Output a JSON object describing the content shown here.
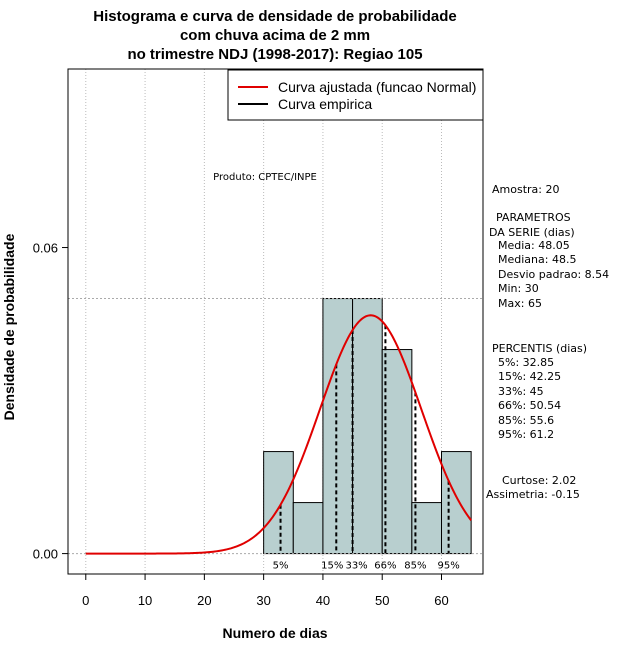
{
  "chart_data": {
    "type": "bar",
    "title_lines": [
      "Histograma e curva de densidade de probabilidade",
      "com chuva acima de 2 mm",
      "no trimestre NDJ (1998-2017): Regiao 105"
    ],
    "xlabel": "Numero de dias",
    "ylabel": "Densidade de probabilidade",
    "xlim": [
      -3,
      67
    ],
    "ylim": [
      -0.004,
      0.095
    ],
    "x_ticks": [
      0,
      10,
      20,
      30,
      40,
      50,
      60
    ],
    "y_ticks": [
      0.0,
      0.06
    ],
    "y_tick_labels": [
      "0.00",
      "0.06"
    ],
    "grid": true,
    "bins": [
      {
        "start": 30,
        "end": 35,
        "density": 0.02
      },
      {
        "start": 35,
        "end": 40,
        "density": 0.01
      },
      {
        "start": 40,
        "end": 45,
        "density": 0.05
      },
      {
        "start": 45,
        "end": 50,
        "density": 0.05
      },
      {
        "start": 50,
        "end": 55,
        "density": 0.04
      },
      {
        "start": 55,
        "end": 60,
        "density": 0.01
      },
      {
        "start": 60,
        "end": 65,
        "density": 0.02
      }
    ],
    "bar_color": "#b8cfcf",
    "curve_color": "#e00000",
    "normal_fit": {
      "mean": 48.05,
      "sd": 8.54,
      "x_from": 0,
      "x_to": 65
    },
    "reference_line_y": 0.05,
    "percentile_lines": [
      {
        "x": 32.85,
        "label": "5%"
      },
      {
        "x": 42.25,
        "label": "15%"
      },
      {
        "x": 45,
        "label": "33%"
      },
      {
        "x": 50.54,
        "label": "66%"
      },
      {
        "x": 55.6,
        "label": "85%"
      },
      {
        "x": 61.2,
        "label": "95%"
      }
    ],
    "legend": {
      "position": "top-right",
      "entries": [
        {
          "label": "Curva ajustada (funcao Normal)",
          "color": "#e00000"
        },
        {
          "label": "Curva empirica",
          "color": "#000000"
        }
      ]
    },
    "annotation": "Produto: CPTEC/INPE",
    "stats": {
      "amostra": "Amostra: 20",
      "param_header_1": "PARAMETROS",
      "param_header_2": "DA SERIE (dias)",
      "params": [
        "Media: 48.05",
        "Mediana: 48.5",
        "Desvio padrao: 8.54",
        "Min: 30",
        "Max: 65"
      ],
      "percentis_header": "PERCENTIS (dias)",
      "percentis": [
        "5%: 32.85",
        "15%: 42.25",
        "33%: 45",
        "66%: 50.54",
        "85%: 55.6",
        "95%: 61.2"
      ],
      "curtose": "Curtose: 2.02",
      "assimetria": "Assimetria: -0.15"
    }
  }
}
